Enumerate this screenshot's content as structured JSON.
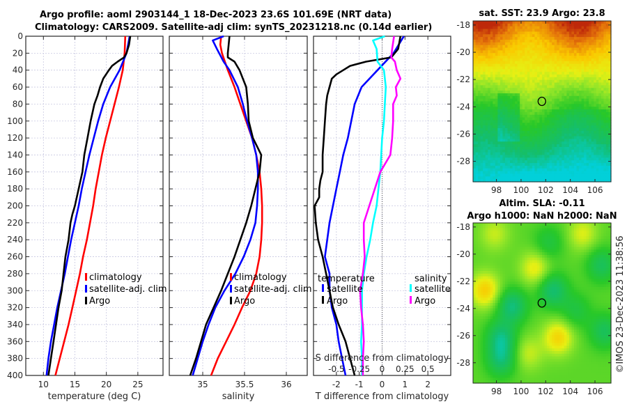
{
  "header": {
    "line1": "Argo profile: aoml 2903144_1 18-Dec-2023 23.6S 101.69E (NRT data)",
    "line2": "Climatology: CARS2009. Satellite-adj clim: synTS_20231218.nc (0.14d earlier)"
  },
  "footer": {
    "credit": "©IMOS 23-Dec-2023 11:38:56"
  },
  "chart_data": [
    {
      "id": "temperature",
      "type": "line",
      "xlabel": "temperature (deg C)",
      "ylabel": "",
      "xlim": [
        7.2,
        29
      ],
      "ylim": [
        400,
        0
      ],
      "xticks": [
        10,
        15,
        20,
        25
      ],
      "yticks": [
        0,
        20,
        40,
        60,
        80,
        100,
        120,
        140,
        160,
        180,
        200,
        220,
        240,
        260,
        280,
        300,
        320,
        340,
        360,
        380,
        400
      ],
      "grid": true,
      "legend": {
        "position": "lower-right",
        "entries": [
          "climatology",
          "satellite-adj. clim",
          "Argo"
        ]
      },
      "series": [
        {
          "name": "climatology",
          "color": "#ff0000",
          "depth": [
            0,
            20,
            40,
            60,
            80,
            100,
            120,
            140,
            160,
            180,
            200,
            220,
            240,
            260,
            280,
            300,
            320,
            340,
            360,
            380,
            400
          ],
          "values": [
            23.0,
            22.9,
            22.6,
            22.0,
            21.3,
            20.6,
            19.9,
            19.3,
            18.8,
            18.3,
            17.9,
            17.4,
            16.9,
            16.3,
            15.8,
            15.2,
            14.6,
            14.0,
            13.3,
            12.6,
            11.9
          ]
        },
        {
          "name": "satellite-adj. clim",
          "color": "#0000ff",
          "depth": [
            0,
            20,
            40,
            60,
            80,
            100,
            120,
            140,
            160,
            180,
            200,
            220,
            240,
            260,
            280,
            300,
            320,
            340,
            360,
            380,
            400
          ],
          "values": [
            23.7,
            23.2,
            22.1,
            20.6,
            19.5,
            18.7,
            18.0,
            17.3,
            16.7,
            16.1,
            15.6,
            15.0,
            14.4,
            13.9,
            13.4,
            12.8,
            12.2,
            11.7,
            11.2,
            10.8,
            10.5
          ]
        },
        {
          "name": "Argo",
          "color": "#000000",
          "depth": [
            0,
            10,
            20,
            25,
            30,
            35,
            40,
            50,
            60,
            70,
            80,
            100,
            120,
            140,
            160,
            180,
            200,
            210,
            220,
            240,
            260,
            280,
            300,
            320,
            340,
            360,
            380,
            400
          ],
          "values": [
            23.8,
            23.6,
            23.2,
            22.8,
            21.8,
            20.9,
            20.4,
            19.5,
            19.0,
            18.6,
            18.1,
            17.5,
            17.0,
            16.5,
            16.2,
            15.6,
            15.0,
            14.6,
            14.3,
            14.0,
            13.5,
            13.2,
            12.9,
            12.4,
            12.0,
            11.6,
            11.2,
            10.8
          ]
        }
      ]
    },
    {
      "id": "salinity",
      "type": "line",
      "xlabel": "salinity",
      "xlim": [
        34.6,
        36.25
      ],
      "ylim": [
        400,
        0
      ],
      "xticks": [
        35,
        35.5,
        36
      ],
      "grid": true,
      "legend": {
        "position": "lower-right",
        "entries": [
          "climatology",
          "satellite-adj. clim",
          "Argo"
        ]
      },
      "series": [
        {
          "name": "climatology",
          "color": "#ff0000",
          "depth": [
            0,
            10,
            20,
            40,
            60,
            80,
            100,
            120,
            140,
            160,
            180,
            200,
            220,
            240,
            260,
            280,
            300,
            320,
            340,
            360,
            380,
            400
          ],
          "values": [
            35.22,
            35.21,
            35.23,
            35.3,
            35.38,
            35.45,
            35.52,
            35.59,
            35.64,
            35.68,
            35.7,
            35.71,
            35.71,
            35.7,
            35.68,
            35.64,
            35.57,
            35.47,
            35.38,
            35.28,
            35.18,
            35.1
          ]
        },
        {
          "name": "satellite-adj. clim",
          "color": "#0000ff",
          "depth": [
            0,
            5,
            15,
            30,
            40,
            60,
            80,
            100,
            120,
            140,
            160,
            180,
            200,
            220,
            240,
            260,
            280,
            300,
            320,
            340,
            360,
            380,
            400
          ],
          "values": [
            35.25,
            35.12,
            35.17,
            35.25,
            35.32,
            35.42,
            35.48,
            35.53,
            35.59,
            35.64,
            35.66,
            35.66,
            35.65,
            35.63,
            35.57,
            35.49,
            35.39,
            35.26,
            35.15,
            35.07,
            35.0,
            34.94,
            34.88
          ]
        },
        {
          "name": "Argo",
          "color": "#000000",
          "depth": [
            0,
            10,
            20,
            25,
            30,
            40,
            50,
            60,
            70,
            80,
            100,
            120,
            140,
            160,
            180,
            200,
            220,
            240,
            260,
            280,
            300,
            320,
            340,
            360,
            380,
            400
          ],
          "values": [
            35.32,
            35.31,
            35.3,
            35.3,
            35.38,
            35.44,
            35.48,
            35.52,
            35.53,
            35.54,
            35.55,
            35.6,
            35.7,
            35.68,
            35.63,
            35.58,
            35.52,
            35.45,
            35.38,
            35.3,
            35.22,
            35.13,
            35.04,
            34.98,
            34.92,
            34.85
          ]
        }
      ]
    },
    {
      "id": "difference",
      "type": "line",
      "xlabel": "T difference from climatology",
      "x2label": "S difference from climatology",
      "xlim": [
        -3,
        3
      ],
      "x2lim": [
        -0.75,
        0.75
      ],
      "ylim": [
        400,
        0
      ],
      "xticks": [
        -2,
        -1,
        0,
        1,
        2
      ],
      "x2ticks": [
        "-0.5",
        "-0.25",
        "0",
        "0.25",
        "0.5"
      ],
      "grid": true,
      "zero_line": "dotted",
      "legend": {
        "position": "lower",
        "temperature_title": "temperature",
        "salinity_title": "salinity",
        "entries_t": [
          "satellite",
          "Argo"
        ],
        "entries_s": [
          "satellite",
          "Argo"
        ]
      },
      "series": [
        {
          "name": "temperature satellite",
          "color": "#0000ff",
          "axis": "T",
          "depth": [
            0,
            20,
            40,
            60,
            80,
            100,
            120,
            140,
            160,
            180,
            200,
            220,
            240,
            260,
            280,
            300,
            320,
            340,
            360,
            380,
            400
          ],
          "values": [
            0.95,
            0.5,
            -0.2,
            -0.9,
            -1.2,
            -1.35,
            -1.5,
            -1.7,
            -1.85,
            -2.0,
            -2.15,
            -2.3,
            -2.4,
            -2.5,
            -2.3,
            -2.3,
            -2.2,
            -2.0,
            -1.9,
            -1.75,
            -1.6
          ]
        },
        {
          "name": "temperature Argo",
          "color": "#000000",
          "axis": "T",
          "depth": [
            0,
            15,
            25,
            30,
            35,
            40,
            45,
            50,
            60,
            70,
            80,
            100,
            120,
            140,
            160,
            170,
            180,
            190,
            200,
            220,
            240,
            260,
            280,
            300,
            320,
            340,
            360,
            380,
            400
          ],
          "values": [
            0.8,
            0.7,
            0.4,
            -0.7,
            -1.4,
            -1.7,
            -2.0,
            -2.2,
            -2.3,
            -2.4,
            -2.45,
            -2.5,
            -2.55,
            -2.6,
            -2.6,
            -2.7,
            -2.75,
            -2.75,
            -2.95,
            -2.9,
            -2.8,
            -2.6,
            -2.45,
            -2.3,
            -2.15,
            -1.9,
            -1.6,
            -1.4,
            -1.2
          ]
        },
        {
          "name": "salinity satellite",
          "color": "#00ffff",
          "axis": "S",
          "depth": [
            0,
            5,
            15,
            30,
            40,
            60,
            80,
            100,
            120,
            140,
            160,
            180,
            200,
            220,
            240,
            260,
            280,
            300,
            320,
            340,
            360,
            380,
            400
          ],
          "values": [
            0.03,
            -0.1,
            -0.06,
            -0.05,
            0.02,
            0.04,
            0.03,
            0.02,
            0.0,
            -0.01,
            -0.02,
            -0.04,
            -0.06,
            -0.1,
            -0.13,
            -0.17,
            -0.2,
            -0.22,
            -0.22,
            -0.22,
            -0.23,
            -0.22,
            -0.22
          ]
        },
        {
          "name": "salinity Argo",
          "color": "#ff00ff",
          "axis": "S",
          "depth": [
            0,
            15,
            25,
            30,
            40,
            50,
            60,
            70,
            80,
            100,
            120,
            140,
            160,
            180,
            200,
            220,
            240,
            260,
            280,
            300,
            320,
            340,
            360,
            380,
            400
          ],
          "values": [
            0.13,
            0.11,
            0.1,
            0.14,
            0.16,
            0.2,
            0.15,
            0.16,
            0.12,
            0.12,
            0.11,
            0.09,
            -0.02,
            -0.08,
            -0.14,
            -0.2,
            -0.2,
            -0.19,
            -0.21,
            -0.24,
            -0.23,
            -0.21,
            -0.2,
            -0.21,
            -0.21
          ]
        }
      ]
    },
    {
      "id": "sst_map",
      "type": "heatmap",
      "title": "sat. SST: 23.9 Argo: 23.8",
      "xlim": [
        96.1,
        107.3
      ],
      "ylim": [
        -29.5,
        -17.7
      ],
      "xticks": [
        98,
        100,
        102,
        104,
        106
      ],
      "yticks": [
        -18,
        -20,
        -22,
        -24,
        -26,
        -28
      ],
      "marker": {
        "lon": 101.69,
        "lat": -23.6,
        "shape": "circle"
      },
      "description": "SST warm (orange/red) in north, cooling through yellow to green and cyan in south"
    },
    {
      "id": "sla_map",
      "type": "heatmap",
      "title_line1": "Altim. SLA: -0.11",
      "title_line2": "Argo h1000: NaN h2000: NaN",
      "xlim": [
        96.1,
        107.3
      ],
      "ylim": [
        -29.5,
        -17.7
      ],
      "xticks": [
        98,
        100,
        102,
        104,
        106
      ],
      "yticks": [
        -18,
        -20,
        -22,
        -24,
        -26,
        -28
      ],
      "marker": {
        "lon": 101.69,
        "lat": -23.6,
        "shape": "circle"
      },
      "description": "Sea level anomaly eddy field: green background with yellow/orange highs and teal lows"
    }
  ]
}
